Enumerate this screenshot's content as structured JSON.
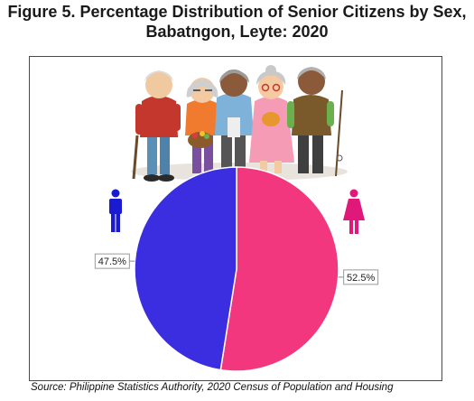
{
  "title_line1": "Figure 5. Percentage Distribution of Senior Citizens by Sex,",
  "title_line2": "Babatngon, Leyte: 2020",
  "source": "Source: Philippine Statistics Authority, 2020 Census of Population and Housing",
  "colors": {
    "male": "#3a2ee0",
    "female": "#f2377f",
    "frame": "#4a4a4a"
  },
  "icons": [
    "senior-citizens-illustration",
    "male-person-icon",
    "female-person-icon"
  ],
  "chart_data": {
    "type": "pie",
    "title": "Figure 5. Percentage Distribution of Senior Citizens by Sex, Babatngon, Leyte: 2020",
    "slices": [
      {
        "label": "47.5%",
        "value": 47.5,
        "color": "#3a2ee0"
      },
      {
        "label": "52.5%",
        "value": 52.5,
        "color": "#f2377f"
      }
    ]
  }
}
